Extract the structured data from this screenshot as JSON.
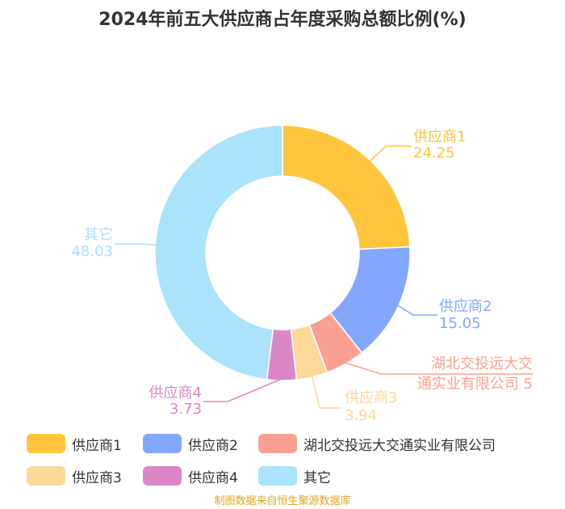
{
  "title": "2024年前五大供应商占年度采购总额比例(%)",
  "source": "制图数据来自恒生聚源数据库",
  "chart_data": {
    "type": "pie",
    "title": "2024年前五大供应商占年度采购总额比例(%)",
    "donut": true,
    "legend_position": "bottom",
    "slices": [
      {
        "label": "供应商1",
        "value": 24.25,
        "value_text": "24.25",
        "color": "#ffc53d"
      },
      {
        "label": "供应商2",
        "value": 15.05,
        "value_text": "15.05",
        "color": "#84a7fe"
      },
      {
        "label": "湖北交投远大交通实业有限公司",
        "value": 5,
        "value_text": "5",
        "color": "#fba193"
      },
      {
        "label": "供应商3",
        "value": 3.94,
        "value_text": "3.94",
        "color": "#fed898"
      },
      {
        "label": "供应商4",
        "value": 3.73,
        "value_text": "3.73",
        "color": "#db87c6"
      },
      {
        "label": "其它",
        "value": 48.03,
        "value_text": "48.03",
        "color": "#aae3fb"
      }
    ]
  }
}
